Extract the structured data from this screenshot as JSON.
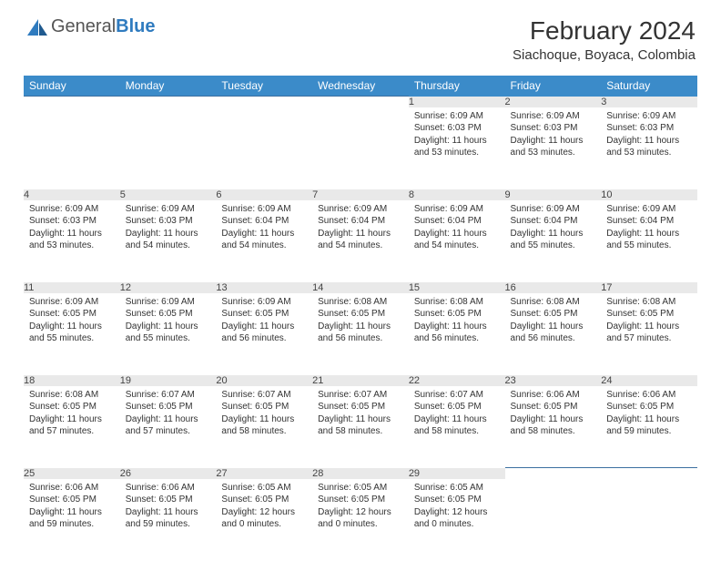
{
  "logo": {
    "text1": "General",
    "text2": "Blue"
  },
  "title": "February 2024",
  "location": "Siachoque, Boyaca, Colombia",
  "colors": {
    "header_bg": "#3b8bc9",
    "daynum_bg": "#e9e9e9",
    "rule": "#3b6fa0",
    "logo_blue": "#2f7bbf"
  },
  "weekdays": [
    "Sunday",
    "Monday",
    "Tuesday",
    "Wednesday",
    "Thursday",
    "Friday",
    "Saturday"
  ],
  "weeks": [
    [
      null,
      null,
      null,
      null,
      {
        "n": "1",
        "sr": "6:09 AM",
        "ss": "6:03 PM",
        "dl": "11 hours and 53 minutes."
      },
      {
        "n": "2",
        "sr": "6:09 AM",
        "ss": "6:03 PM",
        "dl": "11 hours and 53 minutes."
      },
      {
        "n": "3",
        "sr": "6:09 AM",
        "ss": "6:03 PM",
        "dl": "11 hours and 53 minutes."
      }
    ],
    [
      {
        "n": "4",
        "sr": "6:09 AM",
        "ss": "6:03 PM",
        "dl": "11 hours and 53 minutes."
      },
      {
        "n": "5",
        "sr": "6:09 AM",
        "ss": "6:03 PM",
        "dl": "11 hours and 54 minutes."
      },
      {
        "n": "6",
        "sr": "6:09 AM",
        "ss": "6:04 PM",
        "dl": "11 hours and 54 minutes."
      },
      {
        "n": "7",
        "sr": "6:09 AM",
        "ss": "6:04 PM",
        "dl": "11 hours and 54 minutes."
      },
      {
        "n": "8",
        "sr": "6:09 AM",
        "ss": "6:04 PM",
        "dl": "11 hours and 54 minutes."
      },
      {
        "n": "9",
        "sr": "6:09 AM",
        "ss": "6:04 PM",
        "dl": "11 hours and 55 minutes."
      },
      {
        "n": "10",
        "sr": "6:09 AM",
        "ss": "6:04 PM",
        "dl": "11 hours and 55 minutes."
      }
    ],
    [
      {
        "n": "11",
        "sr": "6:09 AM",
        "ss": "6:05 PM",
        "dl": "11 hours and 55 minutes."
      },
      {
        "n": "12",
        "sr": "6:09 AM",
        "ss": "6:05 PM",
        "dl": "11 hours and 55 minutes."
      },
      {
        "n": "13",
        "sr": "6:09 AM",
        "ss": "6:05 PM",
        "dl": "11 hours and 56 minutes."
      },
      {
        "n": "14",
        "sr": "6:08 AM",
        "ss": "6:05 PM",
        "dl": "11 hours and 56 minutes."
      },
      {
        "n": "15",
        "sr": "6:08 AM",
        "ss": "6:05 PM",
        "dl": "11 hours and 56 minutes."
      },
      {
        "n": "16",
        "sr": "6:08 AM",
        "ss": "6:05 PM",
        "dl": "11 hours and 56 minutes."
      },
      {
        "n": "17",
        "sr": "6:08 AM",
        "ss": "6:05 PM",
        "dl": "11 hours and 57 minutes."
      }
    ],
    [
      {
        "n": "18",
        "sr": "6:08 AM",
        "ss": "6:05 PM",
        "dl": "11 hours and 57 minutes."
      },
      {
        "n": "19",
        "sr": "6:07 AM",
        "ss": "6:05 PM",
        "dl": "11 hours and 57 minutes."
      },
      {
        "n": "20",
        "sr": "6:07 AM",
        "ss": "6:05 PM",
        "dl": "11 hours and 58 minutes."
      },
      {
        "n": "21",
        "sr": "6:07 AM",
        "ss": "6:05 PM",
        "dl": "11 hours and 58 minutes."
      },
      {
        "n": "22",
        "sr": "6:07 AM",
        "ss": "6:05 PM",
        "dl": "11 hours and 58 minutes."
      },
      {
        "n": "23",
        "sr": "6:06 AM",
        "ss": "6:05 PM",
        "dl": "11 hours and 58 minutes."
      },
      {
        "n": "24",
        "sr": "6:06 AM",
        "ss": "6:05 PM",
        "dl": "11 hours and 59 minutes."
      }
    ],
    [
      {
        "n": "25",
        "sr": "6:06 AM",
        "ss": "6:05 PM",
        "dl": "11 hours and 59 minutes."
      },
      {
        "n": "26",
        "sr": "6:06 AM",
        "ss": "6:05 PM",
        "dl": "11 hours and 59 minutes."
      },
      {
        "n": "27",
        "sr": "6:05 AM",
        "ss": "6:05 PM",
        "dl": "12 hours and 0 minutes."
      },
      {
        "n": "28",
        "sr": "6:05 AM",
        "ss": "6:05 PM",
        "dl": "12 hours and 0 minutes."
      },
      {
        "n": "29",
        "sr": "6:05 AM",
        "ss": "6:05 PM",
        "dl": "12 hours and 0 minutes."
      },
      null,
      null
    ]
  ],
  "labels": {
    "sunrise": "Sunrise:",
    "sunset": "Sunset:",
    "daylight": "Daylight:"
  }
}
